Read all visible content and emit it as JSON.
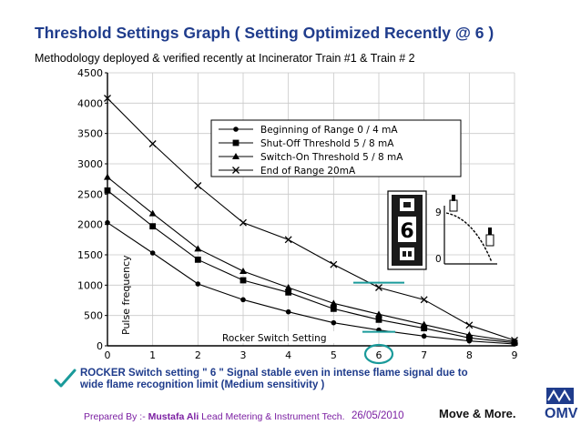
{
  "header": {
    "title": "Threshold Settings Graph ( Setting Optimized Recently @ 6 )",
    "subtitle": "Methodology deployed & verified recently at Incinerator Train #1 & Train # 2"
  },
  "chart_data": {
    "type": "line",
    "x": [
      0,
      1,
      2,
      3,
      4,
      5,
      6,
      7,
      8,
      9
    ],
    "xlim": [
      0,
      9
    ],
    "ylim": [
      0,
      4500
    ],
    "yticks": [
      0,
      500,
      1000,
      1500,
      2000,
      2500,
      3000,
      3500,
      4000,
      4500
    ],
    "ylabel": "Pulse frequency",
    "xlabel": "Rocker Switch Setting",
    "grid": true,
    "legend_position": "top-right",
    "series": [
      {
        "name": "Beginning of Range 0 / 4 mA",
        "marker": "circle",
        "values": [
          2030,
          1530,
          1020,
          760,
          560,
          380,
          260,
          160,
          80,
          30
        ]
      },
      {
        "name": "Shut-Off Threshold 5 / 8 mA",
        "marker": "square",
        "values": [
          2560,
          1970,
          1420,
          1080,
          880,
          610,
          430,
          290,
          130,
          50
        ]
      },
      {
        "name": "Switch-On Threshold 5 / 8 mA",
        "marker": "triangle",
        "values": [
          2780,
          2180,
          1600,
          1230,
          960,
          700,
          520,
          350,
          180,
          70
        ]
      },
      {
        "name": "End of Range 20mA",
        "marker": "x",
        "values": [
          4080,
          3330,
          2640,
          2030,
          1750,
          1340,
          960,
          760,
          340,
          90
        ]
      }
    ],
    "highlight": {
      "x": 6,
      "level": 1040
    },
    "inset": {
      "digit": "6",
      "scale_top": "9",
      "scale_bottom": "0"
    }
  },
  "note": {
    "line1": "ROCKER Switch setting \" 6 \" Signal stable even in intense flame signal due to",
    "line2": "wide flame recognition limit (Medium sensitivity )"
  },
  "footer": {
    "prepared_label": "Prepared By :-",
    "author": "Mustafa Ali",
    "role": "Lead Metering & Instrument Tech.",
    "date": "26/05/2010",
    "slogan": "Move & More.",
    "brand": "OMV"
  },
  "colors": {
    "title": "#1f3c8c",
    "footer": "#7b1fa2",
    "highlight": "#1a9a9a",
    "check": "#1a9a9a"
  }
}
